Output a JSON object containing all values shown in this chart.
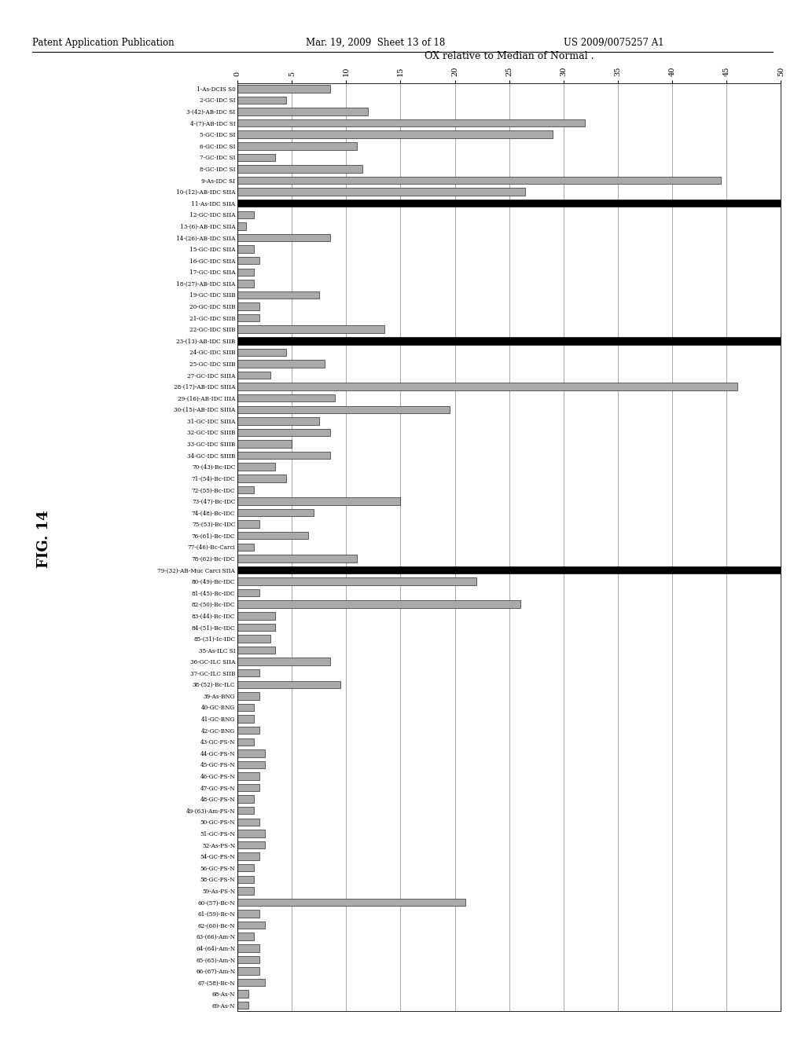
{
  "title": "OX relative to Median of Normal .",
  "xlim": [
    0,
    50
  ],
  "xticks": [
    0,
    5,
    10,
    15,
    20,
    25,
    30,
    35,
    40,
    45,
    50
  ],
  "xtick_labels": [
    "0",
    "5",
    "10",
    "15",
    "20",
    "25",
    "30",
    "35",
    "40",
    "45",
    "50"
  ],
  "bars": [
    {
      "label": "1-As-DCIS S0",
      "value": 8.5,
      "bold_line": false
    },
    {
      "label": "2-GC-IDC SI",
      "value": 4.5,
      "bold_line": false
    },
    {
      "label": "3-(42)-AB-IDC SI",
      "value": 12.0,
      "bold_line": false
    },
    {
      "label": "4-(7)-AB-IDC SI",
      "value": 32.0,
      "bold_line": false
    },
    {
      "label": "5-GC-IDC SI",
      "value": 29.0,
      "bold_line": false
    },
    {
      "label": "6-GC-IDC SI",
      "value": 11.0,
      "bold_line": false
    },
    {
      "label": "7-GC-IDC SI",
      "value": 3.5,
      "bold_line": false
    },
    {
      "label": "8-GC-IDC SI",
      "value": 11.5,
      "bold_line": false
    },
    {
      "label": "9-As-IDC SI",
      "value": 44.5,
      "bold_line": false
    },
    {
      "label": "10-(12)-AB-IDC SIIA",
      "value": 26.5,
      "bold_line": false
    },
    {
      "label": "11-As-IDC SIIA",
      "value": 50.0,
      "bold_line": true
    },
    {
      "label": "12-GC-IDC SIIA",
      "value": 1.5,
      "bold_line": false
    },
    {
      "label": "13-(6)-AB-IDC SIIA",
      "value": 0.8,
      "bold_line": false
    },
    {
      "label": "14-(26)-AB-IDC SIIA",
      "value": 8.5,
      "bold_line": false
    },
    {
      "label": "15-GC-IDC SIIA",
      "value": 1.5,
      "bold_line": false
    },
    {
      "label": "16-GC-IDC SIIA",
      "value": 2.0,
      "bold_line": false
    },
    {
      "label": "17-GC-IDC SIIA",
      "value": 1.5,
      "bold_line": false
    },
    {
      "label": "18-(27)-AB-IDC SIIA",
      "value": 1.5,
      "bold_line": false
    },
    {
      "label": "19-GC-IDC SIIB",
      "value": 7.5,
      "bold_line": false
    },
    {
      "label": "20-GC-IDC SIIB",
      "value": 2.0,
      "bold_line": false
    },
    {
      "label": "21-GC-IDC SIIB",
      "value": 2.0,
      "bold_line": false
    },
    {
      "label": "22-GC-IDC SIIB",
      "value": 13.5,
      "bold_line": false
    },
    {
      "label": "23-(13)-AB-IDC SIIB",
      "value": 50.0,
      "bold_line": true
    },
    {
      "label": "24-GC-IDC SIIB",
      "value": 4.5,
      "bold_line": false
    },
    {
      "label": "25-GC-IDC SIIB",
      "value": 8.0,
      "bold_line": false
    },
    {
      "label": "27-GC-IDC SIIIA",
      "value": 3.0,
      "bold_line": false
    },
    {
      "label": "28-(17)-AB-IDC SIIIA",
      "value": 46.0,
      "bold_line": false
    },
    {
      "label": "29-(16)-AB-IDC IIIA",
      "value": 9.0,
      "bold_line": false
    },
    {
      "label": "30-(15)-AB-IDC SIIIA",
      "value": 19.5,
      "bold_line": false
    },
    {
      "label": "31-GC-IDC SIIIA",
      "value": 7.5,
      "bold_line": false
    },
    {
      "label": "32-GC-IDC SIIIB",
      "value": 8.5,
      "bold_line": false
    },
    {
      "label": "33-GC-IDC SIIIB",
      "value": 5.0,
      "bold_line": false
    },
    {
      "label": "34-GC-IDC SIIIB",
      "value": 8.5,
      "bold_line": false
    },
    {
      "label": "70-(43)-Bc-IDC",
      "value": 3.5,
      "bold_line": false
    },
    {
      "label": "71-(54)-Bc-IDC",
      "value": 4.5,
      "bold_line": false
    },
    {
      "label": "72-(55)-Bc-IDC",
      "value": 1.5,
      "bold_line": false
    },
    {
      "label": "73-(47)-Bc-IDC",
      "value": 15.0,
      "bold_line": false
    },
    {
      "label": "74-(48)-Bc-IDC",
      "value": 7.0,
      "bold_line": false
    },
    {
      "label": "75-(53)-Bc-IDC",
      "value": 2.0,
      "bold_line": false
    },
    {
      "label": "76-(61)-Bc-IDC",
      "value": 6.5,
      "bold_line": false
    },
    {
      "label": "77-(46)-Bc-Carci",
      "value": 1.5,
      "bold_line": false
    },
    {
      "label": "78-(62)-Bc-IDC",
      "value": 11.0,
      "bold_line": false
    },
    {
      "label": "79-(32)-AB-Muc Carci SIIA",
      "value": 50.0,
      "bold_line": true
    },
    {
      "label": "80-(49)-Bc-IDC",
      "value": 22.0,
      "bold_line": false
    },
    {
      "label": "81-(45)-Bc-IDC",
      "value": 2.0,
      "bold_line": false
    },
    {
      "label": "82-(50)-Bc-IDC",
      "value": 26.0,
      "bold_line": false
    },
    {
      "label": "83-(44)-Bc-IDC",
      "value": 3.5,
      "bold_line": false
    },
    {
      "label": "84-(51)-Bc-IDC",
      "value": 3.5,
      "bold_line": false
    },
    {
      "label": "85-(31)-Ic-IDC",
      "value": 3.0,
      "bold_line": false
    },
    {
      "label": "35-As-ILC SI",
      "value": 3.5,
      "bold_line": false
    },
    {
      "label": "36-GC-ILC SIIA",
      "value": 8.5,
      "bold_line": false
    },
    {
      "label": "37-GC-ILC SIIB",
      "value": 2.0,
      "bold_line": false
    },
    {
      "label": "38-(52)-Bc-ILC",
      "value": 9.5,
      "bold_line": false
    },
    {
      "label": "39-As-BNG",
      "value": 2.0,
      "bold_line": false
    },
    {
      "label": "40-GC-BNG",
      "value": 1.5,
      "bold_line": false
    },
    {
      "label": "41-GC-BNG",
      "value": 1.5,
      "bold_line": false
    },
    {
      "label": "42-GC-BNG",
      "value": 2.0,
      "bold_line": false
    },
    {
      "label": "43-GC-PS-N",
      "value": 1.5,
      "bold_line": false
    },
    {
      "label": "44-GC-PS-N",
      "value": 2.5,
      "bold_line": false
    },
    {
      "label": "45-GC-PS-N",
      "value": 2.5,
      "bold_line": false
    },
    {
      "label": "46-GC-PS-N",
      "value": 2.0,
      "bold_line": false
    },
    {
      "label": "47-GC-PS-N",
      "value": 2.0,
      "bold_line": false
    },
    {
      "label": "48-GC-PS-N",
      "value": 1.5,
      "bold_line": false
    },
    {
      "label": "49-(63)-Am-PS-N",
      "value": 1.5,
      "bold_line": false
    },
    {
      "label": "50-GC-PS-N",
      "value": 2.0,
      "bold_line": false
    },
    {
      "label": "51-GC-PS-N",
      "value": 2.5,
      "bold_line": false
    },
    {
      "label": "52-As-PS-N",
      "value": 2.5,
      "bold_line": false
    },
    {
      "label": "54-GC-PS-N",
      "value": 2.0,
      "bold_line": false
    },
    {
      "label": "56-GC-PS-N",
      "value": 1.5,
      "bold_line": false
    },
    {
      "label": "58-GC-PS-N",
      "value": 1.5,
      "bold_line": false
    },
    {
      "label": "59-As-PS-N",
      "value": 1.5,
      "bold_line": false
    },
    {
      "label": "60-(57)-Bc-N",
      "value": 21.0,
      "bold_line": false
    },
    {
      "label": "61-(59)-Bc-N",
      "value": 2.0,
      "bold_line": false
    },
    {
      "label": "62-(60)-Bc-N",
      "value": 2.5,
      "bold_line": false
    },
    {
      "label": "63-(66)-Am-N",
      "value": 1.5,
      "bold_line": false
    },
    {
      "label": "64-(64)-Am-N",
      "value": 2.0,
      "bold_line": false
    },
    {
      "label": "65-(65)-Am-N",
      "value": 2.0,
      "bold_line": false
    },
    {
      "label": "66-(67)-Am-N",
      "value": 2.0,
      "bold_line": false
    },
    {
      "label": "67-(58)-Bc-N",
      "value": 2.5,
      "bold_line": false
    },
    {
      "label": "68-As-N",
      "value": 1.0,
      "bold_line": false
    },
    {
      "label": "69-As-N",
      "value": 1.0,
      "bold_line": false
    }
  ],
  "bar_color": "#aaaaaa",
  "background_color": "#ffffff",
  "header_left": "Patent Application Publication",
  "header_mid": "Mar. 19, 2009  Sheet 13 of 18",
  "header_right": "US 2009/0075257 A1",
  "fig_label": "FIG. 14"
}
